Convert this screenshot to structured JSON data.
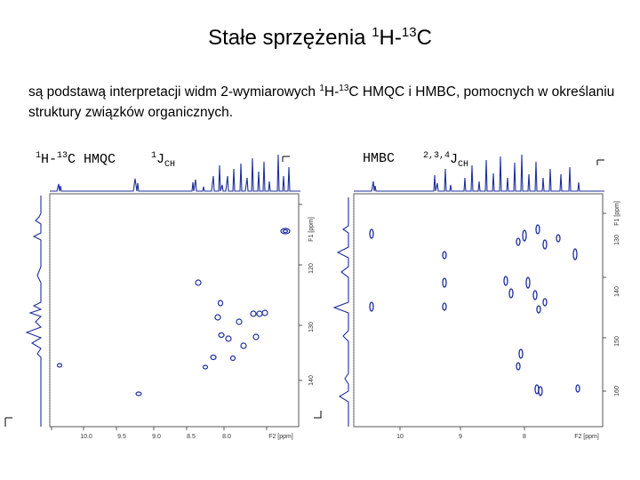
{
  "title": {
    "pre": "Stałe sprzężenia ",
    "sup1": "1",
    "mid": "H-",
    "sup2": "13",
    "post": "C"
  },
  "description": {
    "part1": "są podstawą interpretacji widm 2-wymiarowych ",
    "sup1": "1",
    "part2": "H-",
    "sup2": "13",
    "part3": "C HMQC i HMBC, pomocnych w określaniu struktury związków organicznych."
  },
  "hmqc": {
    "label_sup1": "1",
    "label_h": "H-",
    "label_sup2": "13",
    "label_c": "C HMQC",
    "j_sup": "1",
    "j_main": "J",
    "j_sub": "CH",
    "f1_label": "F1 [ppm]",
    "f1_ticks": [
      "120",
      "130",
      "140"
    ],
    "f2_label": "F2 [ppm]",
    "f2_ticks": [
      "10.0",
      "9.5",
      "9.0",
      "8.5",
      "8.0"
    ]
  },
  "hmbc": {
    "label": "HMBC",
    "j_sup": "2,3,4",
    "j_main": "J",
    "j_sub": "CH",
    "f1_label": "F1 [ppm]",
    "f1_ticks": [
      "130",
      "140",
      "150",
      "160"
    ],
    "f2_label": "F2 [ppm]",
    "f2_ticks": [
      "10",
      "9",
      "8"
    ]
  },
  "colors": {
    "contour": "#1f2f9e",
    "spectrum": "#1f2f9e",
    "frame": "#555555"
  }
}
